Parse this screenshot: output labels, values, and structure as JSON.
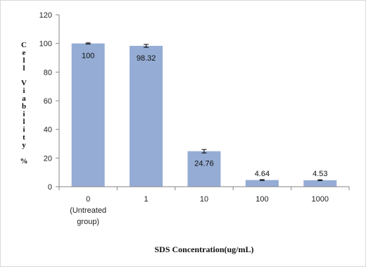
{
  "chart_data": {
    "type": "bar",
    "categories": [
      "0",
      "1",
      "10",
      "100",
      "1000"
    ],
    "category_sublabels": [
      [
        "(Untreated",
        "group)"
      ],
      [],
      [],
      [],
      []
    ],
    "values": [
      100,
      98.32,
      24.76,
      4.64,
      4.53
    ],
    "value_labels": [
      "100",
      "98.32",
      "24.76",
      "4.64",
      "4.53"
    ],
    "errors": [
      0.4,
      1.0,
      1.2,
      0.3,
      0.3
    ],
    "ylim": [
      0,
      120
    ],
    "yticks": [
      0,
      20,
      40,
      60,
      80,
      100,
      120
    ],
    "ylabel_chars": [
      "C",
      "e",
      "l",
      "l",
      "V",
      "i",
      "a",
      "b",
      "i",
      "l",
      "i",
      "t",
      "y",
      "%"
    ],
    "xlabel": "SDS Concentration(ug/mL)",
    "grid": false,
    "legend": "none",
    "bar_color": "#95acd4"
  }
}
